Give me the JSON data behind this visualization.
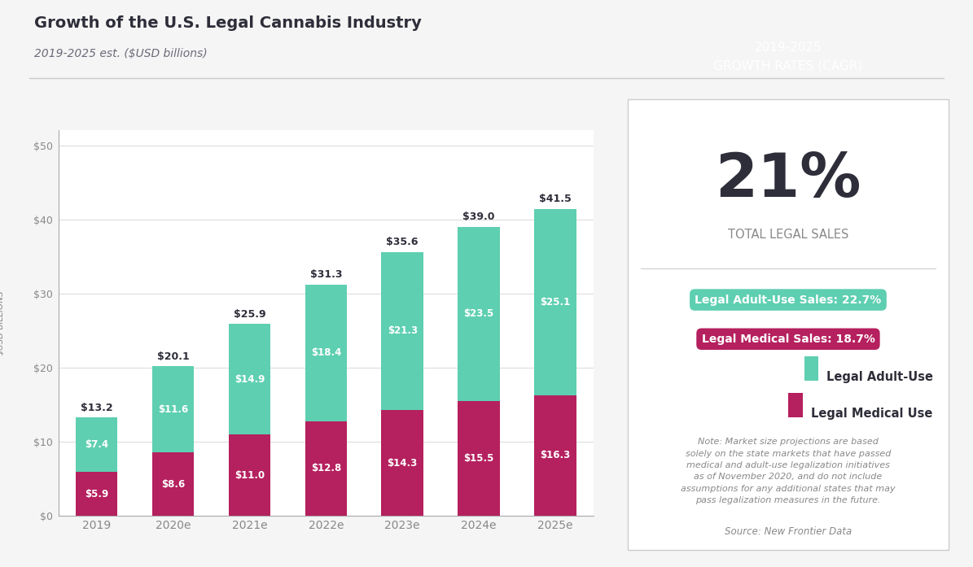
{
  "title": "Growth of the U.S. Legal Cannabis Industry",
  "subtitle": "2019-2025 est. ($USD billions)",
  "ylabel": "$USD BILLIONS",
  "categories": [
    "2019",
    "2020e",
    "2021e",
    "2022e",
    "2023e",
    "2024e",
    "2025e"
  ],
  "medical_values": [
    5.9,
    8.6,
    11.0,
    12.8,
    14.3,
    15.5,
    16.3
  ],
  "adult_values": [
    7.4,
    11.6,
    14.9,
    18.4,
    21.3,
    23.5,
    25.1
  ],
  "total_labels": [
    "$13.2",
    "$20.1",
    "$25.9",
    "$31.3",
    "$35.6",
    "$39.0",
    "$41.5"
  ],
  "medical_labels": [
    "$5.9",
    "$8.6",
    "$11.0",
    "$12.8",
    "$14.3",
    "$15.5",
    "$16.3"
  ],
  "adult_labels": [
    "$7.4",
    "$11.6",
    "$14.9",
    "$18.4",
    "$21.3",
    "$23.5",
    "$25.1"
  ],
  "color_adult": "#5ecfb1",
  "color_medical": "#b5205e",
  "yticks": [
    0,
    10,
    20,
    30,
    40,
    50
  ],
  "ytick_labels": [
    "$0",
    "$10",
    "$20",
    "$30",
    "$40",
    "$50"
  ],
  "ylim": [
    0,
    52
  ],
  "bg_color": "#f5f5f5",
  "panel_bg": "#ffffff",
  "header_bg": "#4a4e69",
  "header_text": "2019-2025\nGROWTH RATES (CAGR)",
  "big_pct": "21%",
  "big_pct_label": "TOTAL LEGAL SALES",
  "adult_rate_label": "Legal Adult-Use Sales: 22.7%",
  "medical_rate_label": "Legal Medical Sales: 18.7%",
  "legend_adult": "Legal Adult-Use",
  "legend_medical": "Legal Medical Use",
  "note_text": "Note: Market size projections are based\nsolely on the state markets that have passed\nmedical and adult-use legalization initiatives\nas of November 2020, and do not include\nassumptions for any additional states that may\npass legalization measures in the future.",
  "source_text": "Source: New Frontier Data",
  "title_color": "#2e2e3a",
  "subtitle_color": "#6b6b7b",
  "axis_color": "#aaaaaa",
  "tick_color": "#888888"
}
